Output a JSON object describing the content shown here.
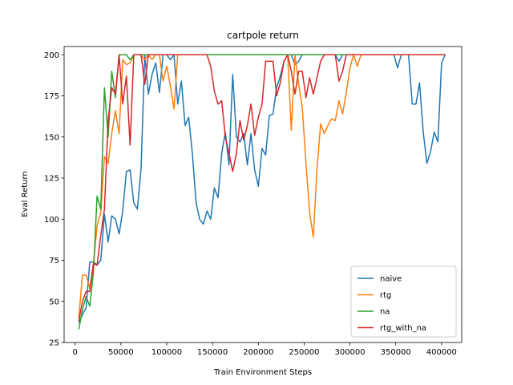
{
  "chart_data": {
    "type": "line",
    "title": "cartpole return",
    "xlabel": "Train Environment Steps",
    "ylabel": "Eval Return",
    "xlim": [
      -12000,
      422000
    ],
    "ylim": [
      25,
      205
    ],
    "xticks": [
      0,
      50000,
      100000,
      150000,
      200000,
      250000,
      300000,
      350000,
      400000
    ],
    "yticks": [
      25,
      50,
      75,
      100,
      125,
      150,
      175,
      200
    ],
    "grid": false,
    "legend": "lower-right",
    "series": [
      {
        "name": "naive",
        "color": "#1f77b4",
        "x": [
          4000,
          8000,
          12000,
          16000,
          20000,
          24000,
          28000,
          32000,
          36000,
          40000,
          44000,
          48000,
          52000,
          56000,
          60000,
          64000,
          68000,
          72000,
          76000,
          80000,
          84000,
          88000,
          92000,
          96000,
          100000,
          104000,
          108000,
          112000,
          116000,
          120000,
          124000,
          128000,
          132000,
          136000,
          140000,
          144000,
          148000,
          152000,
          156000,
          160000,
          164000,
          168000,
          172000,
          176000,
          180000,
          184000,
          188000,
          192000,
          196000,
          200000,
          204000,
          208000,
          212000,
          216000,
          220000,
          224000,
          228000,
          232000,
          236000,
          240000,
          244000,
          248000,
          252000,
          256000,
          260000,
          264000,
          268000,
          272000,
          276000,
          280000,
          284000,
          288000,
          292000,
          296000,
          300000,
          304000,
          308000,
          312000,
          316000,
          320000,
          324000,
          328000,
          332000,
          336000,
          340000,
          344000,
          348000,
          352000,
          356000,
          360000,
          364000,
          368000,
          372000,
          376000,
          380000,
          384000,
          388000,
          392000,
          396000,
          400000,
          404000
        ],
        "y": [
          37,
          42,
          46,
          74,
          74,
          72,
          75,
          103,
          86,
          102,
          100,
          91,
          105,
          129,
          130,
          110,
          106,
          131,
          200,
          176,
          188,
          195,
          177,
          200,
          200,
          197,
          200,
          170,
          184,
          157,
          162,
          140,
          110,
          100,
          97,
          105,
          100,
          119,
          113,
          140,
          153,
          133,
          188,
          150,
          147,
          152,
          133,
          152,
          130,
          120,
          143,
          139,
          163,
          164,
          180,
          187,
          196,
          200,
          200,
          194,
          196,
          200,
          200,
          200,
          200,
          200,
          200,
          200,
          200,
          200,
          200,
          196,
          200,
          200,
          200,
          200,
          200,
          200,
          200,
          200,
          200,
          200,
          200,
          200,
          200,
          200,
          200,
          192,
          200,
          200,
          200,
          170,
          170,
          183,
          153,
          134,
          141,
          153,
          147,
          195,
          200
        ]
      },
      {
        "name": "rtg",
        "color": "#ff7f0e",
        "x": [
          4000,
          8000,
          12000,
          16000,
          20000,
          24000,
          28000,
          32000,
          36000,
          40000,
          44000,
          48000,
          52000,
          56000,
          60000,
          64000,
          68000,
          72000,
          76000,
          80000,
          84000,
          88000,
          92000,
          96000,
          100000,
          104000,
          108000,
          112000,
          116000,
          120000,
          124000,
          128000,
          132000,
          136000,
          140000,
          144000,
          148000,
          152000,
          156000,
          160000,
          164000,
          168000,
          172000,
          176000,
          180000,
          184000,
          188000,
          192000,
          196000,
          200000,
          204000,
          208000,
          212000,
          216000,
          220000,
          224000,
          228000,
          232000,
          236000,
          240000,
          244000,
          248000,
          252000,
          256000,
          260000,
          264000,
          268000,
          272000,
          276000,
          280000,
          284000,
          288000,
          292000,
          296000,
          300000,
          304000,
          308000,
          312000,
          316000,
          320000,
          324000,
          328000,
          332000,
          336000,
          340000,
          344000,
          348000,
          352000,
          356000,
          360000,
          364000,
          368000,
          372000,
          376000,
          380000,
          384000,
          388000,
          392000,
          396000,
          400000,
          404000
        ],
        "y": [
          40,
          66,
          66,
          58,
          73,
          96,
          104,
          138,
          134,
          152,
          166,
          152,
          197,
          194,
          195,
          200,
          200,
          200,
          197,
          200,
          197,
          200,
          200,
          184,
          193,
          181,
          167,
          200,
          200,
          200,
          200,
          200,
          200,
          200,
          200,
          200,
          200,
          200,
          200,
          200,
          200,
          200,
          200,
          200,
          200,
          200,
          200,
          200,
          200,
          200,
          200,
          200,
          200,
          200,
          200,
          200,
          200,
          200,
          154,
          200,
          182,
          168,
          134,
          104,
          89,
          130,
          158,
          152,
          157,
          161,
          160,
          172,
          164,
          177,
          192,
          200,
          193,
          200,
          200,
          200,
          200,
          200,
          200,
          200,
          200,
          200,
          200,
          200,
          200,
          200,
          200,
          200,
          200,
          200,
          200,
          200,
          200,
          200,
          200,
          200,
          200
        ]
      },
      {
        "name": "na",
        "color": "#2ca02c",
        "x": [
          4000,
          8000,
          12000,
          16000,
          20000,
          24000,
          28000,
          32000,
          36000,
          40000,
          44000,
          48000,
          52000,
          56000,
          60000,
          64000,
          68000,
          72000,
          76000,
          80000,
          84000,
          88000,
          92000,
          96000,
          100000,
          104000,
          108000,
          112000,
          116000,
          120000,
          130000,
          140000,
          150000,
          160000,
          170000,
          180000,
          190000,
          200000,
          210000,
          220000,
          230000,
          240000,
          250000,
          260000,
          270000,
          280000,
          290000,
          300000,
          310000,
          320000,
          330000,
          340000,
          350000,
          360000,
          370000,
          380000,
          390000,
          400000,
          404000
        ],
        "y": [
          33,
          45,
          53,
          47,
          68,
          114,
          106,
          180,
          150,
          190,
          174,
          200,
          200,
          200,
          197,
          200,
          200,
          200,
          200,
          200,
          200,
          200,
          200,
          200,
          200,
          200,
          200,
          200,
          200,
          200,
          200,
          200,
          200,
          200,
          200,
          200,
          200,
          200,
          200,
          200,
          200,
          200,
          200,
          200,
          200,
          200,
          200,
          200,
          200,
          200,
          200,
          200,
          200,
          200,
          200,
          200,
          200,
          200,
          200
        ]
      },
      {
        "name": "rtg_with_na",
        "color": "#d62728",
        "x": [
          4000,
          8000,
          12000,
          16000,
          20000,
          24000,
          28000,
          32000,
          36000,
          40000,
          44000,
          48000,
          52000,
          56000,
          60000,
          64000,
          68000,
          72000,
          76000,
          80000,
          84000,
          88000,
          92000,
          96000,
          100000,
          104000,
          108000,
          112000,
          116000,
          120000,
          124000,
          128000,
          132000,
          136000,
          140000,
          144000,
          148000,
          152000,
          156000,
          160000,
          164000,
          168000,
          172000,
          176000,
          180000,
          184000,
          188000,
          192000,
          196000,
          200000,
          204000,
          208000,
          212000,
          216000,
          220000,
          224000,
          228000,
          232000,
          236000,
          240000,
          244000,
          248000,
          252000,
          256000,
          260000,
          264000,
          268000,
          272000,
          276000,
          280000,
          284000,
          288000,
          292000,
          296000,
          300000,
          304000,
          308000,
          312000,
          316000,
          320000,
          324000,
          328000,
          332000,
          336000,
          340000,
          344000,
          348000,
          352000,
          356000,
          360000,
          364000,
          368000,
          372000,
          376000,
          380000,
          384000,
          388000,
          392000,
          396000,
          400000,
          404000
        ],
        "y": [
          38,
          50,
          56,
          56,
          73,
          72,
          90,
          106,
          160,
          180,
          176,
          200,
          170,
          187,
          145,
          200,
          200,
          200,
          182,
          200,
          200,
          200,
          200,
          200,
          200,
          200,
          200,
          200,
          200,
          200,
          200,
          200,
          200,
          200,
          200,
          200,
          193,
          178,
          170,
          172,
          150,
          140,
          129,
          140,
          160,
          148,
          157,
          170,
          151,
          162,
          170,
          196,
          196,
          196,
          175,
          183,
          196,
          200,
          190,
          176,
          190,
          190,
          174,
          186,
          176,
          186,
          196,
          200,
          200,
          200,
          200,
          184,
          190,
          200,
          200,
          200,
          200,
          200,
          200,
          200,
          200,
          200,
          200,
          200,
          200,
          200,
          200,
          200,
          200,
          200,
          200,
          200,
          200,
          200,
          200,
          200,
          200,
          200,
          200,
          200,
          200
        ]
      }
    ]
  }
}
